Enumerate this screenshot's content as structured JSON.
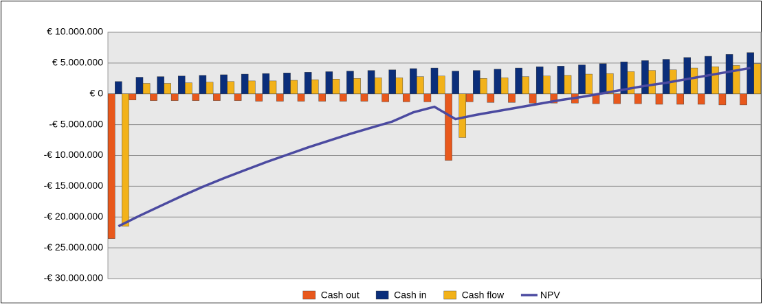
{
  "chart_data": {
    "type": "bar_line",
    "categories": [
      null,
      null,
      null,
      null,
      null,
      null,
      null,
      null,
      null,
      null,
      null,
      null,
      null,
      null,
      null,
      null,
      null,
      null,
      null,
      null,
      null,
      null,
      null,
      null,
      null,
      null,
      null,
      null,
      null,
      null,
      null
    ],
    "series": [
      {
        "name": "Cash out",
        "type": "bar",
        "color": "#e8581c",
        "values": [
          -23500000,
          -1000000,
          -1100000,
          -1100000,
          -1100000,
          -1100000,
          -1100000,
          -1200000,
          -1200000,
          -1200000,
          -1200000,
          -1200000,
          -1200000,
          -1300000,
          -1300000,
          -1300000,
          -10800000,
          -1300000,
          -1400000,
          -1400000,
          -1500000,
          -1500000,
          -1500000,
          -1600000,
          -1600000,
          -1600000,
          -1700000,
          -1700000,
          -1700000,
          -1800000,
          -1800000
        ]
      },
      {
        "name": "Cash in",
        "type": "bar",
        "color": "#0b2e7a",
        "values": [
          2000000,
          2700000,
          2800000,
          2900000,
          3000000,
          3100000,
          3200000,
          3300000,
          3400000,
          3500000,
          3600000,
          3700000,
          3800000,
          3900000,
          4100000,
          4200000,
          3700000,
          3800000,
          4000000,
          4200000,
          4400000,
          4500000,
          4700000,
          4900000,
          5200000,
          5400000,
          5600000,
          5900000,
          6100000,
          6400000,
          6700000
        ]
      },
      {
        "name": "Cash flow",
        "type": "bar",
        "color": "#f2b21a",
        "values": [
          -21500000,
          1700000,
          1700000,
          1800000,
          1900000,
          2000000,
          2100000,
          2100000,
          2200000,
          2300000,
          2400000,
          2500000,
          2600000,
          2600000,
          2800000,
          2900000,
          -7100000,
          2500000,
          2600000,
          2800000,
          2900000,
          3000000,
          3200000,
          3300000,
          3600000,
          3800000,
          3900000,
          4200000,
          4400000,
          4600000,
          4900000
        ]
      },
      {
        "name": "NPV",
        "type": "line",
        "color": "#4b4aa0",
        "values": [
          -21500000,
          -19800000,
          -18200000,
          -16600000,
          -15100000,
          -13700000,
          -12400000,
          -11100000,
          -9900000,
          -8700000,
          -7600000,
          -6500000,
          -5500000,
          -4500000,
          -3000000,
          -2100000,
          -4100000,
          -3400000,
          -2800000,
          -2200000,
          -1600000,
          -1000000,
          -500000,
          100000,
          700000,
          1300000,
          1800000,
          2400000,
          3000000,
          3600000,
          4200000
        ]
      }
    ],
    "ylim": [
      -30000000,
      10000000
    ],
    "yticks": [
      {
        "value": -30000000,
        "label": "-€ 30.000.000"
      },
      {
        "value": -25000000,
        "label": "-€ 25.000.000"
      },
      {
        "value": -20000000,
        "label": "-€ 20.000.000"
      },
      {
        "value": -15000000,
        "label": "-€ 15.000.000"
      },
      {
        "value": -10000000,
        "label": "-€ 10.000.000"
      },
      {
        "value": -5000000,
        "label": "-€ 5.000.000"
      },
      {
        "value": 0,
        "label": "€ 0"
      },
      {
        "value": 5000000,
        "label": "€ 5.000.000"
      },
      {
        "value": 10000000,
        "label": "€ 10.000.000"
      }
    ],
    "grid": true,
    "legend": "bottom"
  }
}
